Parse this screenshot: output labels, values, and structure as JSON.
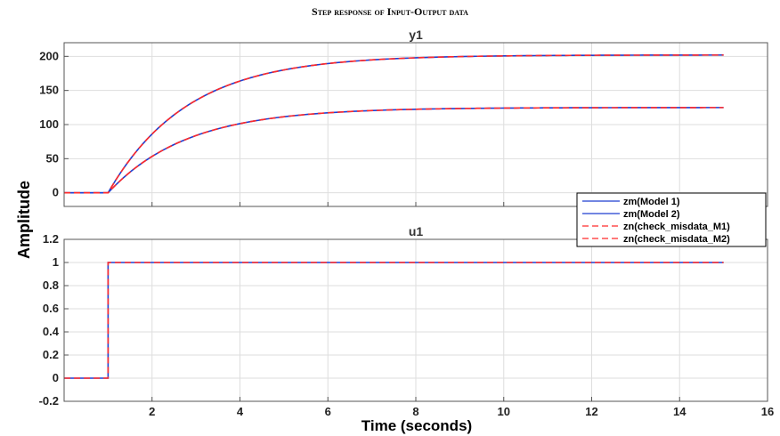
{
  "chart_data": {
    "type": "line",
    "title": "Step response of Input-Output data",
    "xlabel": "Time (seconds)",
    "ylabel": "Amplitude",
    "xlim": [
      0,
      16
    ],
    "x_ticks": [
      "2",
      "4",
      "6",
      "8",
      "10",
      "12",
      "14",
      "16"
    ],
    "grid": true,
    "legend_placement": "right, between subplots",
    "legend": [
      {
        "label": "zm(Model 1)",
        "color": "#1f3fd0",
        "style": "solid"
      },
      {
        "label": "zm(Model 2)",
        "color": "#1f3fd0",
        "style": "solid"
      },
      {
        "label": "zn(check_misdata_M1)",
        "color": "#ff2a2a",
        "style": "dashed"
      },
      {
        "label": "zn(check_misdata_M2)",
        "color": "#ff2a2a",
        "style": "dashed"
      }
    ],
    "subplots": [
      {
        "title": "y1",
        "ylim": [
          -20,
          220
        ],
        "y_ticks": [
          "0",
          "50",
          "100",
          "150",
          "200"
        ],
        "series": [
          {
            "name": "zm(Model 1)",
            "step_time": 1,
            "final_value": 202,
            "time_constant": 1.8,
            "x_end": 15,
            "color": "#1f3fd0",
            "style": "solid"
          },
          {
            "name": "zm(Model 2)",
            "step_time": 1,
            "final_value": 125,
            "time_constant": 1.8,
            "x_end": 15,
            "color": "#1f3fd0",
            "style": "solid"
          },
          {
            "name": "zn(check_misdata_M1)",
            "step_time": 1,
            "final_value": 202,
            "time_constant": 1.8,
            "x_end": 15,
            "color": "#ff2a2a",
            "style": "dashed"
          },
          {
            "name": "zn(check_misdata_M2)",
            "step_time": 1,
            "final_value": 125,
            "time_constant": 1.8,
            "x_end": 15,
            "color": "#ff2a2a",
            "style": "dashed"
          }
        ]
      },
      {
        "title": "u1",
        "ylim": [
          -0.2,
          1.2
        ],
        "y_ticks": [
          "-0.2",
          "0",
          "0.2",
          "0.4",
          "0.6",
          "0.8",
          "1",
          "1.2"
        ],
        "series": [
          {
            "name": "zm(Model 1)",
            "x": [
              0,
              1,
              1,
              15
            ],
            "y": [
              0,
              0,
              1,
              1
            ],
            "color": "#1f3fd0",
            "style": "solid"
          },
          {
            "name": "zn(check_misdata_M1)",
            "x": [
              0,
              1,
              1,
              15
            ],
            "y": [
              0,
              0,
              1,
              1
            ],
            "color": "#ff2a2a",
            "style": "dashed"
          }
        ]
      }
    ]
  }
}
